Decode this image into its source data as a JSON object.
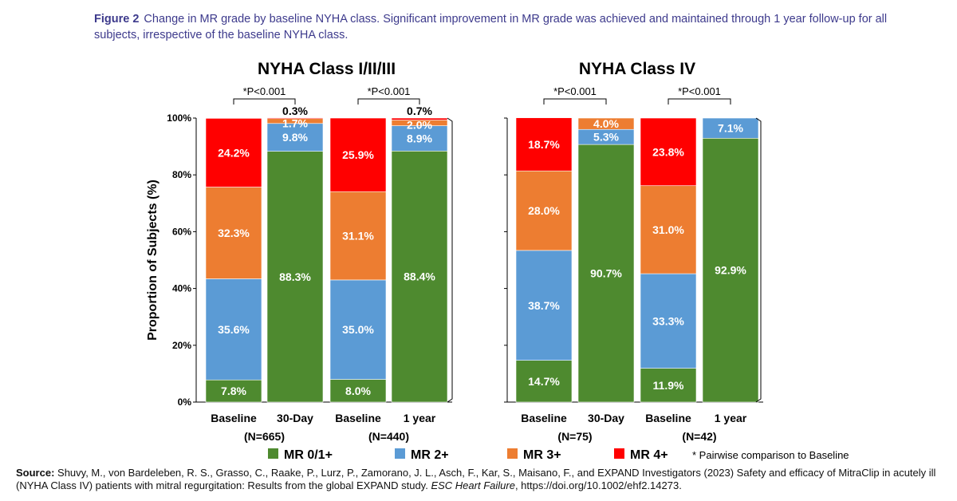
{
  "caption": {
    "label": "Figure 2",
    "text": "Change in MR grade by baseline NYHA class. Significant improvement in MR grade was achieved and maintained through 1 year follow-up for all subjects, irrespective of the baseline NYHA class."
  },
  "chart_data": {
    "type": "bar",
    "stacked": true,
    "ylabel": "Proportion of Subjects (%)",
    "ylim": [
      0,
      100
    ],
    "yticks": [
      "0%",
      "20%",
      "40%",
      "60%",
      "80%",
      "100%"
    ],
    "legend": {
      "position": "bottom",
      "entries": [
        "MR 0/1+",
        "MR 2+",
        "MR 3+",
        "MR 4+"
      ],
      "note": "* Pairwise comparison to Baseline"
    },
    "colors": {
      "MR 0/1+": "#4e8a2f",
      "MR 2+": "#5b9bd5",
      "MR 3+": "#ed7d31",
      "MR 4+": "#ff0000"
    },
    "panels": [
      {
        "title": "NYHA Class I/II/III",
        "categories": [
          "Baseline",
          "30-Day",
          "Baseline",
          "1 year"
        ],
        "group_n": [
          "(N=665)",
          "(N=440)"
        ],
        "significance": [
          "*P<0.001",
          "*P<0.001"
        ],
        "series": [
          {
            "name": "MR 0/1+",
            "values": [
              7.8,
              88.3,
              8.0,
              88.4
            ],
            "labels": [
              "7.8%",
              "88.3%",
              "8.0%",
              "88.4%"
            ]
          },
          {
            "name": "MR 2+",
            "values": [
              35.6,
              9.8,
              35.0,
              8.9
            ],
            "labels": [
              "35.6%",
              "9.8%",
              "35.0%",
              "8.9%"
            ]
          },
          {
            "name": "MR 3+",
            "values": [
              32.3,
              1.7,
              31.1,
              2.0
            ],
            "labels": [
              "32.3%",
              "1.7%",
              "31.1%",
              "2.0%"
            ]
          },
          {
            "name": "MR 4+",
            "values": [
              24.2,
              0.3,
              25.9,
              0.7
            ],
            "labels": [
              "24.2%",
              "0.3%",
              "25.9%",
              "0.7%"
            ]
          }
        ]
      },
      {
        "title": "NYHA Class IV",
        "categories": [
          "Baseline",
          "30-Day",
          "Baseline",
          "1 year"
        ],
        "group_n": [
          "(N=75)",
          "(N=42)"
        ],
        "significance": [
          "*P<0.001",
          "*P<0.001"
        ],
        "series": [
          {
            "name": "MR 0/1+",
            "values": [
              14.7,
              90.7,
              11.9,
              92.9
            ],
            "labels": [
              "14.7%",
              "90.7%",
              "11.9%",
              "92.9%"
            ]
          },
          {
            "name": "MR 2+",
            "values": [
              38.7,
              5.3,
              33.3,
              7.1
            ],
            "labels": [
              "38.7%",
              "5.3%",
              "33.3%",
              "7.1%"
            ]
          },
          {
            "name": "MR 3+",
            "values": [
              28.0,
              4.0,
              31.0,
              0
            ],
            "labels": [
              "28.0%",
              "4.0%",
              "31.0%",
              ""
            ]
          },
          {
            "name": "MR 4+",
            "values": [
              18.7,
              0,
              23.8,
              0
            ],
            "labels": [
              "18.7%",
              "",
              "23.8%",
              ""
            ]
          }
        ]
      }
    ]
  },
  "source": {
    "label": "Source:",
    "text": "Shuvy, M., von Bardeleben, R. S., Grasso, C., Raake, P., Lurz, P., Zamorano, J. L., Asch, F., Kar, S., Maisano, F., and EXPAND Investigators (2023) Safety and efficacy of MitraClip in acutely ill (NYHA Class IV) patients with mitral regurgitation: Results from the global EXPAND study.",
    "journal": "ESC Heart Failure",
    "doi": ", https://doi.org/10.1002/ehf2.14273."
  }
}
